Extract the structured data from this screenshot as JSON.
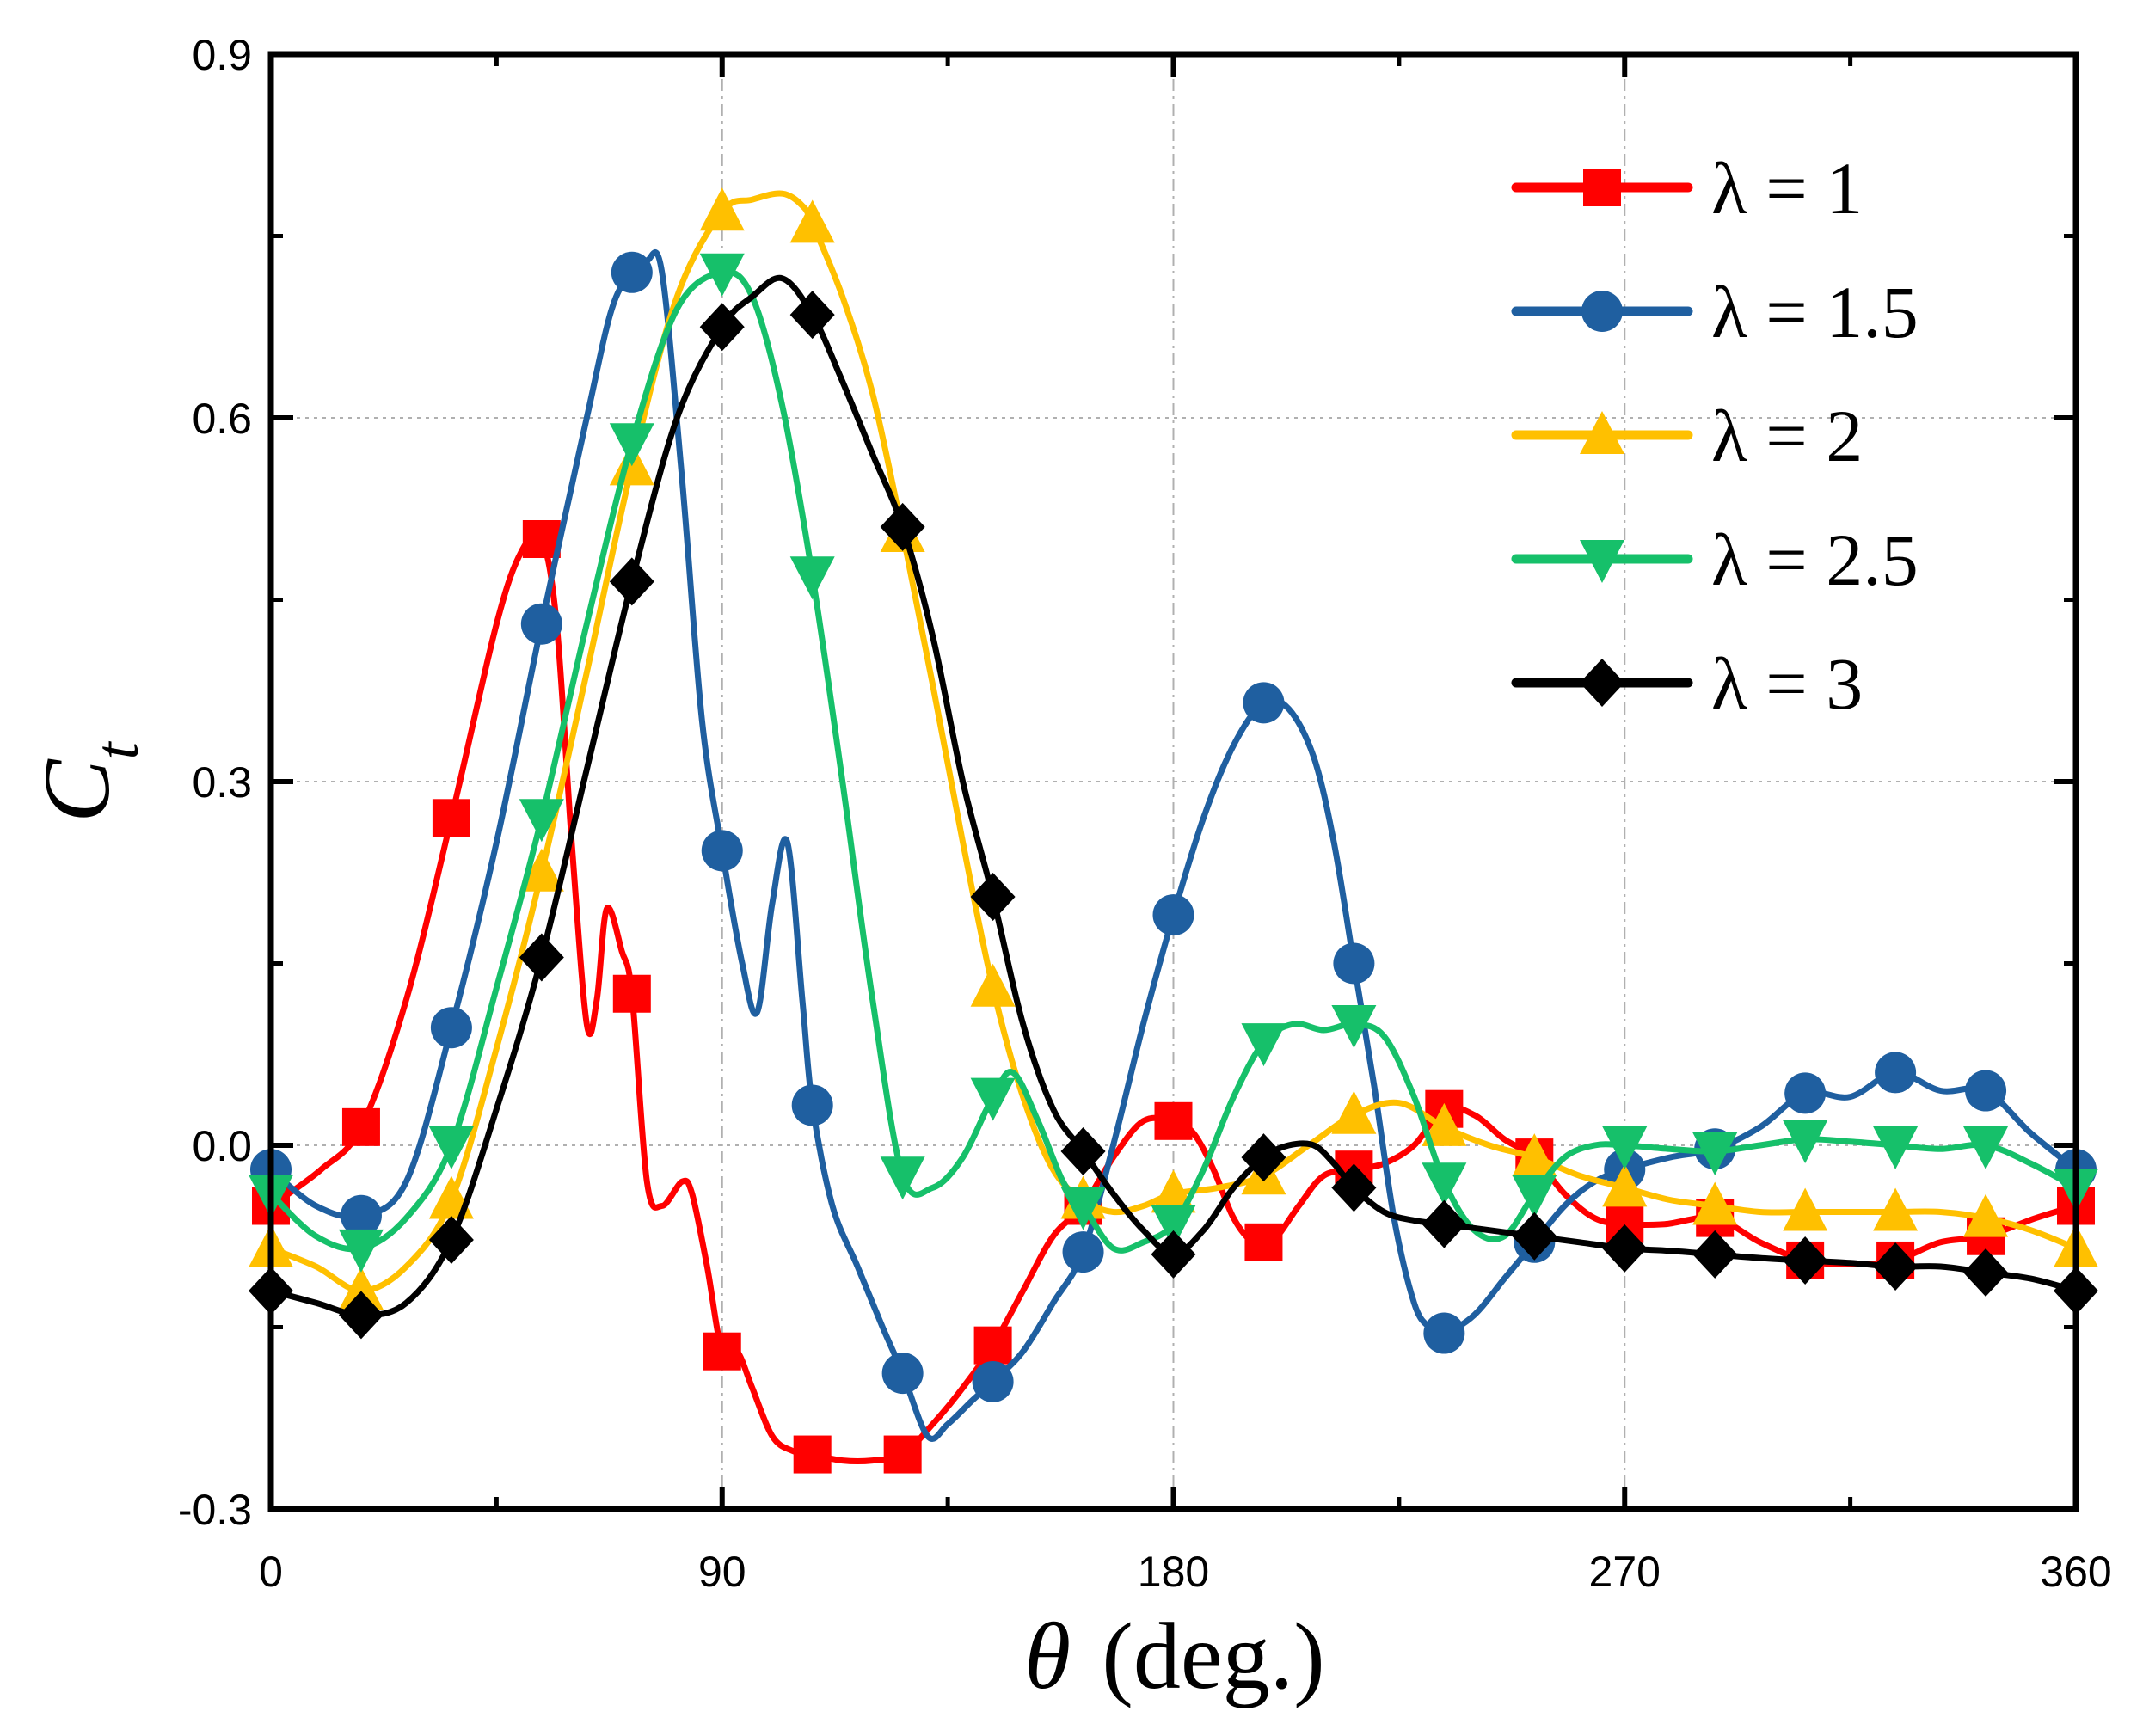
{
  "chart_data": {
    "type": "line",
    "xlabel": "θ (deg.)",
    "ylabel": "C_t",
    "xlim": [
      0,
      360
    ],
    "ylim": [
      -0.3,
      0.9
    ],
    "xticks": [
      "0",
      "90",
      "180",
      "270",
      "360"
    ],
    "yticks": [
      "-0.3",
      "0.0",
      "0.3",
      "0.6",
      "0.9"
    ],
    "grid": true,
    "legend_position": "top-right",
    "series": [
      {
        "name": "λ = 1",
        "color": "#ff0000",
        "marker": "square",
        "x": [
          0,
          18,
          36,
          54,
          72,
          90,
          108,
          126,
          144,
          162,
          180,
          198,
          216,
          234,
          252,
          270,
          288,
          306,
          324,
          342,
          360
        ],
        "y": [
          -0.05,
          0.015,
          0.27,
          0.5,
          0.125,
          -0.17,
          -0.255,
          -0.255,
          -0.165,
          -0.05,
          0.02,
          -0.08,
          -0.02,
          0.03,
          -0.01,
          -0.065,
          -0.06,
          -0.095,
          -0.095,
          -0.075,
          -0.05
        ],
        "line_x": [
          0,
          10,
          18,
          27,
          36,
          45,
          50,
          54,
          57,
          60,
          63,
          65,
          67,
          70,
          72,
          75,
          78,
          82,
          84,
          87,
          90,
          93,
          96,
          100,
          104,
          108,
          114,
          120,
          126,
          132,
          138,
          144,
          150,
          156,
          162,
          168,
          174,
          180,
          184,
          188,
          192,
          196,
          200,
          205,
          210,
          216,
          222,
          228,
          234,
          240,
          246,
          252,
          258,
          264,
          270,
          278,
          288,
          297,
          306,
          315,
          324,
          333,
          342,
          352,
          360
        ],
        "line_y": [
          -0.05,
          -0.02,
          0.015,
          0.12,
          0.27,
          0.43,
          0.49,
          0.5,
          0.43,
          0.25,
          0.1,
          0.12,
          0.195,
          0.16,
          0.125,
          -0.03,
          -0.05,
          -0.03,
          -0.04,
          -0.1,
          -0.17,
          -0.17,
          -0.2,
          -0.24,
          -0.252,
          -0.255,
          -0.26,
          -0.26,
          -0.255,
          -0.23,
          -0.2,
          -0.165,
          -0.12,
          -0.075,
          -0.05,
          -0.01,
          0.02,
          0.02,
          0.01,
          -0.02,
          -0.06,
          -0.08,
          -0.078,
          -0.05,
          -0.025,
          -0.02,
          -0.015,
          0.0,
          0.03,
          0.025,
          0.005,
          -0.01,
          -0.04,
          -0.06,
          -0.065,
          -0.065,
          -0.06,
          -0.08,
          -0.095,
          -0.098,
          -0.095,
          -0.08,
          -0.075,
          -0.06,
          -0.05
        ]
      },
      {
        "name": "λ = 1.5",
        "color": "#1f5fa0",
        "marker": "circle",
        "x": [
          0,
          18,
          36,
          54,
          72,
          90,
          108,
          126,
          144,
          162,
          180,
          198,
          216,
          234,
          252,
          270,
          288,
          306,
          324,
          342,
          360
        ],
        "y": [
          -0.02,
          -0.058,
          0.097,
          0.43,
          0.72,
          0.243,
          0.033,
          -0.188,
          -0.195,
          -0.088,
          0.19,
          0.365,
          0.15,
          -0.155,
          -0.08,
          -0.02,
          -0.003,
          0.043,
          0.06,
          0.045,
          -0.02
        ],
        "line_x": [
          0,
          9,
          18,
          27,
          36,
          45,
          54,
          63,
          68,
          72,
          75,
          78,
          82,
          86,
          90,
          94,
          97,
          100,
          103,
          106,
          108,
          112,
          117,
          122,
          126,
          131,
          135,
          140,
          144,
          150,
          156,
          162,
          168,
          174,
          180,
          186,
          192,
          198,
          203,
          208,
          212,
          216,
          220,
          224,
          228,
          231,
          234,
          240,
          246,
          252,
          258,
          264,
          270,
          279,
          288,
          297,
          306,
          315,
          324,
          333,
          342,
          351,
          360
        ],
        "line_y": [
          -0.02,
          -0.05,
          -0.058,
          -0.03,
          0.097,
          0.25,
          0.43,
          0.6,
          0.69,
          0.72,
          0.73,
          0.72,
          0.55,
          0.35,
          0.243,
          0.15,
          0.11,
          0.2,
          0.25,
          0.12,
          0.033,
          -0.05,
          -0.1,
          -0.15,
          -0.188,
          -0.24,
          -0.23,
          -0.21,
          -0.195,
          -0.17,
          -0.13,
          -0.088,
          0.0,
          0.1,
          0.19,
          0.27,
          0.33,
          0.365,
          0.36,
          0.32,
          0.25,
          0.15,
          0.05,
          -0.06,
          -0.13,
          -0.15,
          -0.155,
          -0.14,
          -0.11,
          -0.08,
          -0.05,
          -0.03,
          -0.02,
          -0.01,
          -0.003,
          0.015,
          0.043,
          0.04,
          0.06,
          0.045,
          0.045,
          0.01,
          -0.02
        ]
      },
      {
        "name": "λ = 2",
        "color": "#ffc000",
        "marker": "triangle-up",
        "x": [
          0,
          18,
          36,
          54,
          72,
          90,
          108,
          126,
          144,
          162,
          180,
          198,
          216,
          234,
          252,
          270,
          288,
          306,
          324,
          342,
          360
        ],
        "y": [
          -0.085,
          -0.12,
          -0.045,
          0.225,
          0.56,
          0.77,
          0.76,
          0.505,
          0.13,
          -0.045,
          -0.04,
          -0.025,
          0.025,
          0.015,
          -0.01,
          -0.035,
          -0.05,
          -0.055,
          -0.055,
          -0.06,
          -0.085
        ],
        "line_x": [
          0,
          9,
          18,
          27,
          36,
          45,
          54,
          63,
          72,
          81,
          90,
          96,
          102,
          106,
          108,
          114,
          120,
          126,
          132,
          138,
          144,
          150,
          156,
          162,
          168,
          174,
          180,
          189,
          198,
          207,
          216,
          225,
          234,
          243,
          252,
          261,
          270,
          279,
          288,
          297,
          306,
          315,
          324,
          333,
          342,
          351,
          360
        ],
        "line_y": [
          -0.085,
          -0.1,
          -0.12,
          -0.1,
          -0.045,
          0.08,
          0.225,
          0.39,
          0.56,
          0.7,
          0.77,
          0.78,
          0.785,
          0.775,
          0.76,
          0.7,
          0.62,
          0.505,
          0.38,
          0.25,
          0.13,
          0.04,
          -0.02,
          -0.045,
          -0.055,
          -0.05,
          -0.04,
          -0.035,
          -0.025,
          0.0,
          0.025,
          0.035,
          0.015,
          0.0,
          -0.01,
          -0.025,
          -0.035,
          -0.045,
          -0.05,
          -0.055,
          -0.055,
          -0.055,
          -0.055,
          -0.055,
          -0.06,
          -0.07,
          -0.085
        ]
      },
      {
        "name": "λ = 2.5",
        "color": "#16c06a",
        "marker": "triangle-down",
        "x": [
          0,
          18,
          36,
          54,
          72,
          90,
          108,
          126,
          144,
          162,
          180,
          198,
          216,
          234,
          252,
          270,
          288,
          306,
          324,
          342,
          360
        ],
        "y": [
          -0.04,
          -0.085,
          0.0,
          0.27,
          0.58,
          0.72,
          0.47,
          -0.025,
          0.04,
          -0.05,
          -0.065,
          0.085,
          0.1,
          -0.03,
          -0.04,
          0.0,
          -0.005,
          0.005,
          0.0,
          0.0,
          -0.035
        ],
        "line_x": [
          0,
          9,
          18,
          27,
          36,
          45,
          54,
          63,
          72,
          81,
          90,
          96,
          102,
          108,
          114,
          120,
          126,
          132,
          138,
          144,
          148,
          153,
          158,
          162,
          168,
          174,
          180,
          186,
          192,
          198,
          204,
          210,
          216,
          222,
          228,
          234,
          240,
          246,
          252,
          258,
          264,
          270,
          279,
          288,
          297,
          306,
          315,
          324,
          333,
          342,
          351,
          360
        ],
        "line_y": [
          -0.04,
          -0.075,
          -0.085,
          -0.06,
          0.0,
          0.13,
          0.27,
          0.43,
          0.58,
          0.69,
          0.72,
          0.7,
          0.61,
          0.47,
          0.3,
          0.12,
          -0.025,
          -0.035,
          -0.01,
          0.04,
          0.06,
          0.02,
          -0.03,
          -0.05,
          -0.085,
          -0.08,
          -0.065,
          -0.02,
          0.04,
          0.085,
          0.1,
          0.095,
          0.1,
          0.09,
          0.04,
          -0.03,
          -0.07,
          -0.075,
          -0.04,
          -0.01,
          0.0,
          0.0,
          -0.003,
          -0.005,
          0.0,
          0.005,
          0.003,
          0.0,
          -0.003,
          0.0,
          -0.015,
          -0.035
        ]
      },
      {
        "name": "λ = 3",
        "color": "#000000",
        "marker": "diamond",
        "x": [
          0,
          18,
          36,
          54,
          72,
          90,
          108,
          126,
          144,
          162,
          180,
          198,
          216,
          234,
          252,
          270,
          288,
          306,
          324,
          342,
          360
        ],
        "y": [
          -0.12,
          -0.14,
          -0.078,
          0.155,
          0.465,
          0.675,
          0.685,
          0.51,
          0.205,
          -0.005,
          -0.09,
          -0.01,
          -0.035,
          -0.065,
          -0.075,
          -0.085,
          -0.09,
          -0.095,
          -0.1,
          -0.105,
          -0.12
        ],
        "line_x": [
          0,
          9,
          18,
          27,
          36,
          45,
          54,
          63,
          72,
          81,
          90,
          96,
          102,
          108,
          114,
          120,
          126,
          132,
          138,
          144,
          150,
          156,
          162,
          168,
          174,
          180,
          186,
          192,
          198,
          203,
          208,
          212,
          216,
          222,
          228,
          234,
          243,
          252,
          261,
          270,
          279,
          288,
          297,
          306,
          315,
          324,
          333,
          342,
          351,
          360
        ],
        "line_y": [
          -0.12,
          -0.13,
          -0.14,
          -0.13,
          -0.078,
          0.03,
          0.155,
          0.31,
          0.465,
          0.6,
          0.675,
          0.7,
          0.715,
          0.685,
          0.63,
          0.57,
          0.51,
          0.42,
          0.3,
          0.205,
          0.1,
          0.03,
          -0.005,
          -0.04,
          -0.07,
          -0.09,
          -0.07,
          -0.035,
          -0.01,
          0.0,
          0.0,
          -0.015,
          -0.035,
          -0.055,
          -0.062,
          -0.065,
          -0.07,
          -0.075,
          -0.08,
          -0.085,
          -0.087,
          -0.09,
          -0.093,
          -0.095,
          -0.097,
          -0.1,
          -0.1,
          -0.105,
          -0.11,
          -0.12
        ]
      }
    ]
  }
}
